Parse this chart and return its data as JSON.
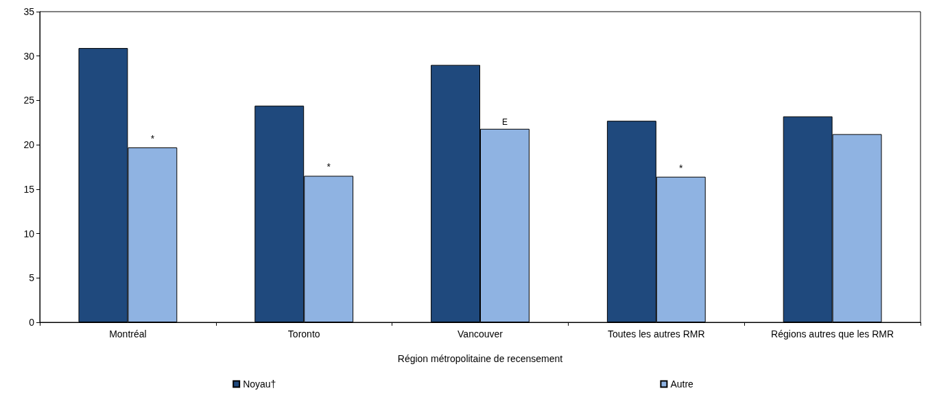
{
  "chart_data": {
    "type": "bar",
    "xlabel": "Région métropolitaine de recensement",
    "categories": [
      "Montréal",
      "Toronto",
      "Vancouver",
      "Toutes les autres RMR",
      "Régions autres que les RMR"
    ],
    "series": [
      {
        "name": "Noyau†",
        "color": "#1f497d",
        "values": [
          30.9,
          24.4,
          29.0,
          22.7,
          23.2
        ]
      },
      {
        "name": "Autre",
        "color": "#8fb3e2",
        "values": [
          19.7,
          16.5,
          21.8,
          16.4,
          21.2
        ]
      }
    ],
    "ylim": [
      0,
      35
    ],
    "yticks": [
      0,
      5,
      10,
      15,
      20,
      25,
      30,
      35
    ],
    "grid": false,
    "legend": "bottom",
    "annotations": [
      {
        "text": "*",
        "x": "Montréal",
        "y": 19.7
      },
      {
        "text": "*",
        "x": "Toronto",
        "y": 16.5
      },
      {
        "text": "E",
        "x": "Vancouver",
        "y": 21.8
      },
      {
        "text": "*",
        "x": "Toutes les autres RMR",
        "y": 16.4
      }
    ]
  }
}
